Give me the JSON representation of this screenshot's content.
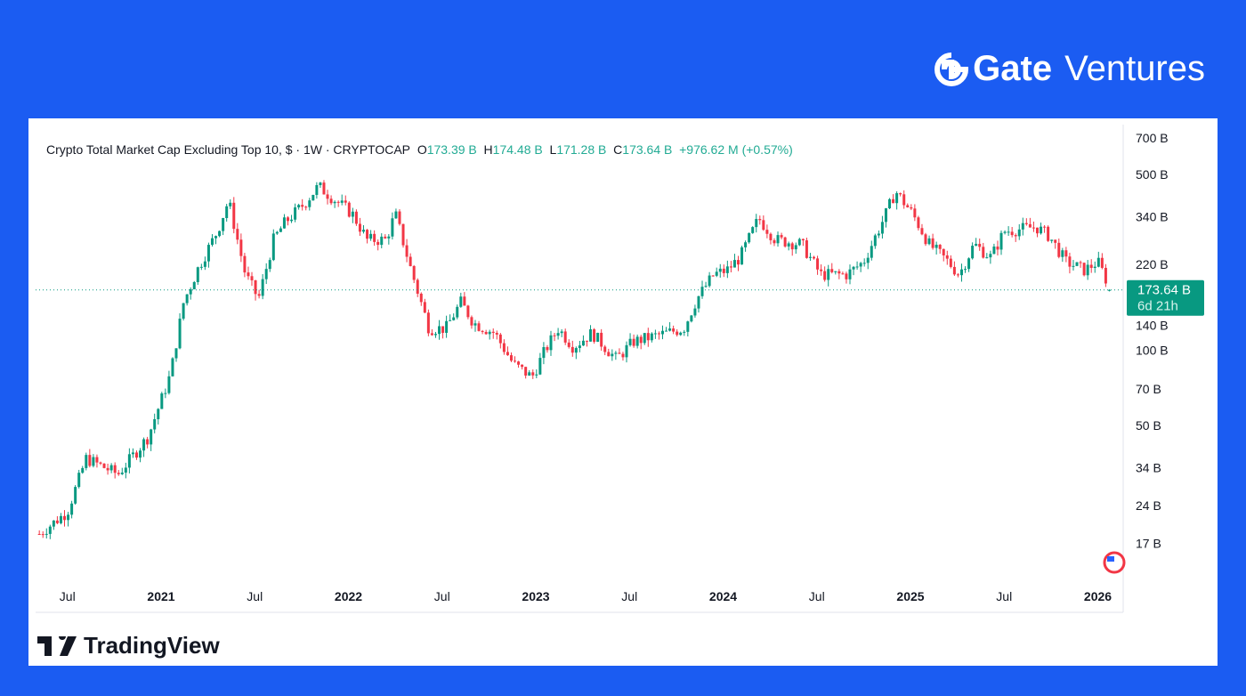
{
  "brand": {
    "name_bold": "Gate",
    "name_light": "Ventures"
  },
  "footer": {
    "logo_text": "TradingView"
  },
  "legend": {
    "title": "Crypto Total Market Cap Excluding Top 10, $ · 1W · CRYPTOCAP",
    "o_label": "O",
    "o": "173.39 B",
    "h_label": "H",
    "h": "174.48 B",
    "l_label": "L",
    "l": "171.28 B",
    "c_label": "C",
    "c": "173.64 B",
    "change": "+976.62 M (+0.57%)"
  },
  "colors": {
    "up": "#089981",
    "down": "#f23645",
    "badge": "#089981",
    "background": "#1b5cf2"
  },
  "chart_data": {
    "type": "candlestick",
    "title": "Crypto Total Market Cap Excluding Top 10",
    "interval": "1W",
    "yscale": "log",
    "ylim_billions": [
      14,
      720
    ],
    "y_ticks": [
      "700 B",
      "500 B",
      "340 B",
      "220 B",
      "140 B",
      "100 B",
      "70 B",
      "50 B",
      "34 B",
      "24 B",
      "17 B"
    ],
    "y_tick_values": [
      700,
      500,
      340,
      220,
      140,
      100,
      70,
      50,
      34,
      24,
      17
    ],
    "x_ticks": [
      {
        "label": "Jul",
        "t": 2020.5,
        "bold": false
      },
      {
        "label": "2021",
        "t": 2021,
        "bold": true
      },
      {
        "label": "Jul",
        "t": 2021.5,
        "bold": false
      },
      {
        "label": "2022",
        "t": 2022,
        "bold": true
      },
      {
        "label": "Jul",
        "t": 2022.5,
        "bold": false
      },
      {
        "label": "2023",
        "t": 2023,
        "bold": true
      },
      {
        "label": "Jul",
        "t": 2023.5,
        "bold": false
      },
      {
        "label": "2024",
        "t": 2024,
        "bold": true
      },
      {
        "label": "Jul",
        "t": 2024.5,
        "bold": false
      },
      {
        "label": "2025",
        "t": 2025,
        "bold": true
      },
      {
        "label": "Jul",
        "t": 2025.5,
        "bold": false
      },
      {
        "label": "2026",
        "t": 2026,
        "bold": true
      }
    ],
    "approx_close_path_billions": [
      [
        2020.35,
        18.5
      ],
      [
        2020.5,
        22.7
      ],
      [
        2020.6,
        37
      ],
      [
        2020.77,
        32
      ],
      [
        2020.93,
        45
      ],
      [
        2021.05,
        80
      ],
      [
        2021.12,
        155
      ],
      [
        2021.2,
        214
      ],
      [
        2021.3,
        297
      ],
      [
        2021.36,
        395
      ],
      [
        2021.45,
        200
      ],
      [
        2021.52,
        160
      ],
      [
        2021.6,
        275
      ],
      [
        2021.66,
        322
      ],
      [
        2021.76,
        380
      ],
      [
        2021.84,
        450
      ],
      [
        2021.93,
        395
      ],
      [
        2022.02,
        350
      ],
      [
        2022.1,
        275
      ],
      [
        2022.2,
        275
      ],
      [
        2022.25,
        350
      ],
      [
        2022.33,
        214
      ],
      [
        2022.43,
        122
      ],
      [
        2022.52,
        122
      ],
      [
        2022.6,
        155
      ],
      [
        2022.67,
        128
      ],
      [
        2022.78,
        117
      ],
      [
        2022.88,
        88
      ],
      [
        2022.98,
        78
      ],
      [
        2023.05,
        100
      ],
      [
        2023.12,
        122
      ],
      [
        2023.2,
        103
      ],
      [
        2023.3,
        117
      ],
      [
        2023.43,
        92
      ],
      [
        2023.52,
        108
      ],
      [
        2023.7,
        117
      ],
      [
        2023.79,
        122
      ],
      [
        2023.86,
        160
      ],
      [
        2023.95,
        200
      ],
      [
        2024.02,
        208
      ],
      [
        2024.09,
        234
      ],
      [
        2024.19,
        335
      ],
      [
        2024.28,
        275
      ],
      [
        2024.42,
        264
      ],
      [
        2024.52,
        200
      ],
      [
        2024.66,
        200
      ],
      [
        2024.75,
        225
      ],
      [
        2024.87,
        350
      ],
      [
        2024.92,
        430
      ],
      [
        2025.01,
        350
      ],
      [
        2025.1,
        264
      ],
      [
        2025.2,
        225
      ],
      [
        2025.26,
        200
      ],
      [
        2025.34,
        264
      ],
      [
        2025.43,
        234
      ],
      [
        2025.5,
        297
      ],
      [
        2025.67,
        310
      ],
      [
        2025.74,
        285
      ],
      [
        2025.83,
        225
      ],
      [
        2025.93,
        208
      ],
      [
        2026.0,
        225
      ],
      [
        2026.07,
        173.64
      ]
    ],
    "last": {
      "open": 173.39,
      "high": 174.48,
      "low": 171.28,
      "close": 173.64
    },
    "price_badge": {
      "value": "173.64 B",
      "countdown": "6d 21h"
    }
  }
}
